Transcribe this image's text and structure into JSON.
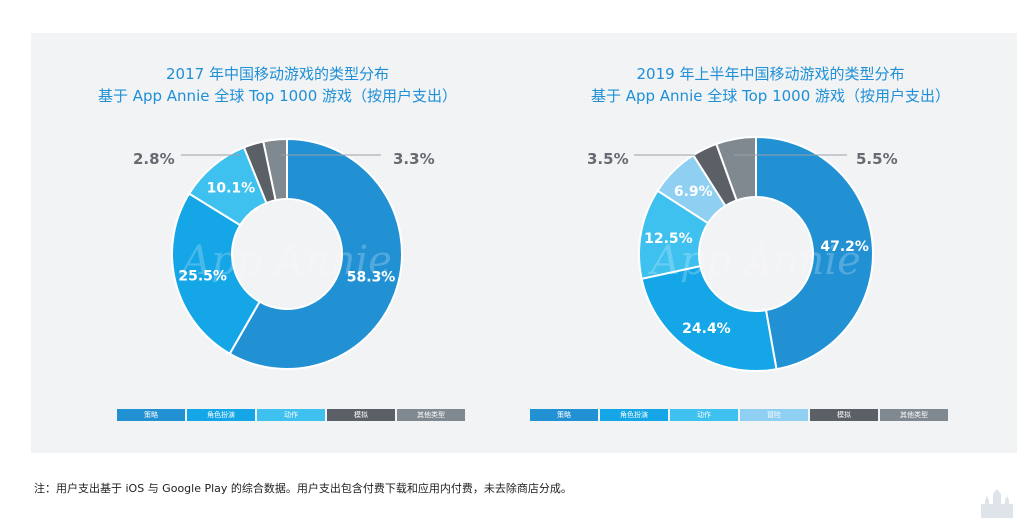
{
  "watermark": "App Annie",
  "footnote": "注：用户支出基于 iOS 与 Google Play 的综合数据。用户支出包含付费下载和应用内付费，未去除商店分成。",
  "chart_data": [
    {
      "type": "pie",
      "title": "2017 年中国移动游戏的类型分布",
      "subtitle": "基于 App Annie 全球 Top 1000 游戏（按用户支出）",
      "slices": [
        {
          "label": "策略",
          "value": 58.3,
          "value_label": "58.3%",
          "color": "#2191d4"
        },
        {
          "label": "角色扮演",
          "value": 25.5,
          "value_label": "25.5%",
          "color": "#14a6e6"
        },
        {
          "label": "动作",
          "value": 10.1,
          "value_label": "10.1%",
          "color": "#3ec1ef"
        },
        {
          "label": "模拟",
          "value": 2.8,
          "value_label": "2.8%",
          "color": "#5b5f66"
        },
        {
          "label": "其他类型",
          "value": 3.3,
          "value_label": "3.3%",
          "color": "#808890"
        }
      ]
    },
    {
      "type": "pie",
      "title": "2019 年上半年中国移动游戏的类型分布",
      "subtitle": "基于 App Annie 全球 Top 1000 游戏（按用户支出）",
      "slices": [
        {
          "label": "策略",
          "value": 47.2,
          "value_label": "47.2%",
          "color": "#2191d4"
        },
        {
          "label": "角色扮演",
          "value": 24.4,
          "value_label": "24.4%",
          "color": "#14a6e6"
        },
        {
          "label": "动作",
          "value": 12.5,
          "value_label": "12.5%",
          "color": "#3ec1ef"
        },
        {
          "label": "冒险",
          "value": 6.9,
          "value_label": "6.9%",
          "color": "#8ecff2"
        },
        {
          "label": "模拟",
          "value": 3.5,
          "value_label": "3.5%",
          "color": "#5b5f66"
        },
        {
          "label": "其他类型",
          "value": 5.5,
          "value_label": "5.5%",
          "color": "#808890"
        }
      ]
    }
  ]
}
